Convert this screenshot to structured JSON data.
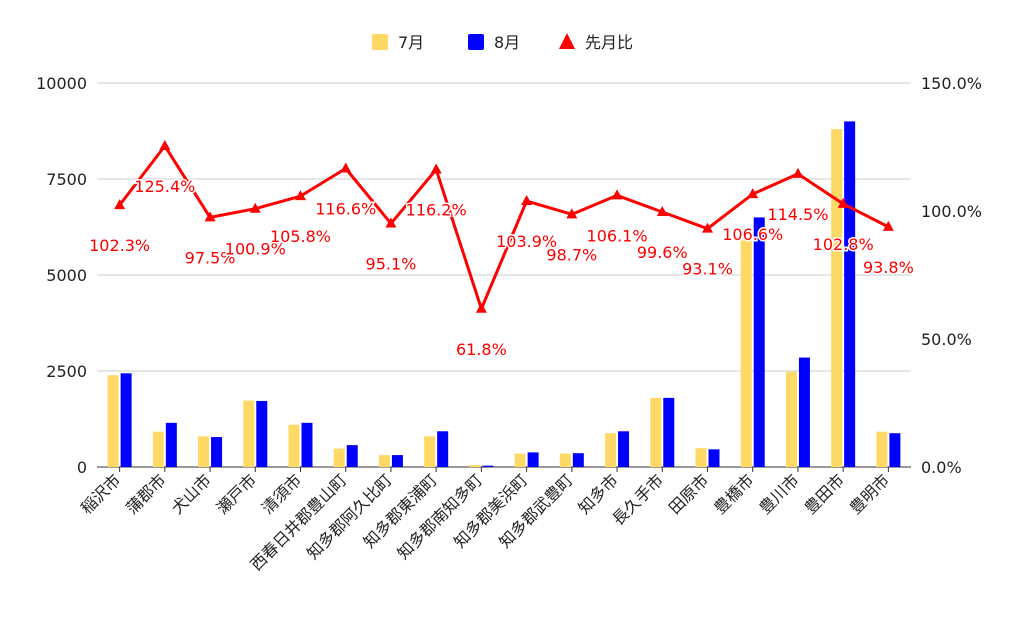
{
  "chart_data": {
    "type": "bar",
    "combo": "bar+line",
    "title": "",
    "categories": [
      "稲沢市",
      "蒲郡市",
      "犬山市",
      "瀬戸市",
      "清須市",
      "西春日井郡豊山町",
      "知多郡阿久比町",
      "知多郡東浦町",
      "知多郡南知多町",
      "知多郡美浜町",
      "知多郡武豊町",
      "知多市",
      "長久手市",
      "田原市",
      "豊橋市",
      "豊川市",
      "豊田市",
      "豊明市"
    ],
    "series": [
      {
        "name": "7月",
        "axis": "left",
        "color": "#ffd966",
        "values": [
          2390,
          920,
          800,
          1730,
          1100,
          480,
          310,
          800,
          50,
          350,
          350,
          880,
          1800,
          490,
          5900,
          2480,
          8800,
          920
        ]
      },
      {
        "name": "8月",
        "axis": "left",
        "color": "#0000ff",
        "values": [
          2440,
          1150,
          780,
          1720,
          1150,
          570,
          310,
          930,
          35,
          380,
          360,
          930,
          1800,
          460,
          6500,
          2850,
          9000,
          880
        ]
      },
      {
        "name": "先月比",
        "axis": "right",
        "type": "line",
        "color": "#ff0000",
        "values": [
          102.3,
          125.4,
          97.5,
          100.9,
          105.8,
          116.6,
          95.1,
          116.2,
          61.8,
          103.9,
          98.7,
          106.1,
          99.6,
          93.1,
          106.6,
          114.5,
          102.8,
          93.8
        ],
        "labels": [
          "102.3%",
          "125.4%",
          "97.5%",
          "100.9%",
          "105.8%",
          "116.6%",
          "95.1%",
          "116.2%",
          "61.8%",
          "103.9%",
          "98.7%",
          "106.1%",
          "99.6%",
          "93.1%",
          "106.6%",
          "114.5%",
          "102.8%",
          "93.8%"
        ]
      }
    ],
    "left_axis": {
      "ylim": [
        0,
        10000
      ],
      "ticks": [
        0,
        2500,
        5000,
        7500,
        10000
      ],
      "tick_labels": [
        "0",
        "2500",
        "5000",
        "7500",
        "10000"
      ]
    },
    "right_axis": {
      "ylim": [
        0,
        150
      ],
      "ticks": [
        0,
        50,
        100,
        150
      ],
      "tick_labels": [
        "0.0%",
        "50.0%",
        "100.0%",
        "150.0%"
      ]
    },
    "xlabel": "",
    "ylabel": "",
    "grid": true,
    "legend_position": "top"
  }
}
